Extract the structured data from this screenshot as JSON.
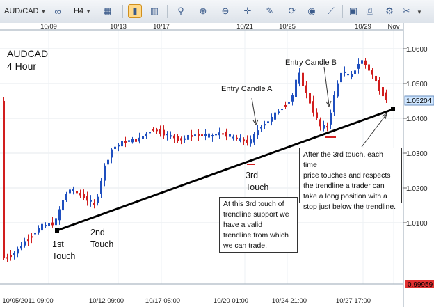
{
  "toolbar": {
    "symbol": "AUD/CAD",
    "timeframe": "H4"
  },
  "chart": {
    "title": "AUDCAD",
    "subtitle": "4 Hour",
    "top_dates": [
      "10/09",
      "10/13",
      "10/17",
      "10/21",
      "10/25",
      "10/29",
      "Nov"
    ],
    "bottom_dates": [
      "10/05/2011 09:00",
      "10/12 09:00",
      "10/17 05:00",
      "10/20 01:00",
      "10/24 21:00",
      "10/27 17:00"
    ],
    "price_ticks": [
      "1.0600",
      "1.0500",
      "1.0400",
      "1.0300",
      "1.0200",
      "1.0100"
    ],
    "current_price": "1.05204",
    "bottom_price": "0.99959",
    "colors": {
      "bull": "#1f4fbf",
      "bear": "#d11e1e",
      "trendline": "#000000",
      "price_tag": "#cfe6ff"
    }
  },
  "annotations": {
    "entry_a": "Entry Candle A",
    "entry_b": "Entry Candle B",
    "touch1": [
      "1st",
      "Touch"
    ],
    "touch2": [
      "2nd",
      "Touch"
    ],
    "touch3": [
      "3rd",
      "Touch"
    ],
    "box_left": [
      "At this 3rd touch of",
      "trendline support we",
      "have a valid",
      "trendline from which",
      "we can trade."
    ],
    "box_right": [
      "After the 3rd touch, each time",
      "price touches and respects",
      "the trendline a trader can",
      "take a long position with a",
      "stop just below the trendline."
    ]
  }
}
